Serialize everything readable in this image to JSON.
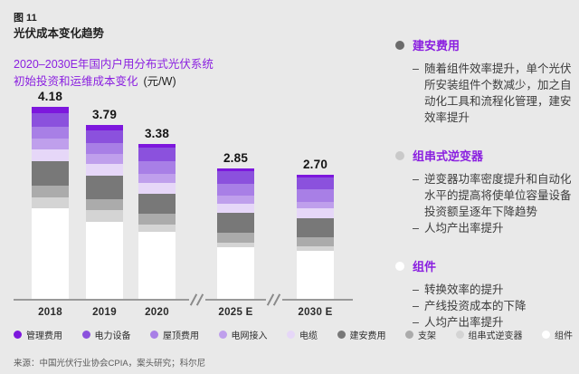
{
  "header": {
    "figure_label": "图 11",
    "title": "光伏成本变化趋势",
    "subtitle_line1": "2020–2030E年国内户用分布式光伏系统",
    "subtitle_line2": "初始投资和运维成本变化",
    "unit": "(元/W)"
  },
  "chart_data": {
    "type": "bar",
    "stacked": true,
    "title": "2020–2030E年国内户用分布式光伏系统初始投资和运维成本变化",
    "ylabel": "元/W",
    "ylim": [
      0,
      4.5
    ],
    "grid": false,
    "legend_position": "bottom",
    "axis_breaks_between": [
      [
        "2020",
        "2025 E"
      ],
      [
        "2025 E",
        "2030 E"
      ]
    ],
    "categories": [
      "2018",
      "2019",
      "2020",
      "2025 E",
      "2030 E"
    ],
    "totals": [
      4.18,
      3.79,
      3.38,
      2.85,
      2.7
    ],
    "series": [
      {
        "name": "管理费用",
        "color": "#7d17dd",
        "values": [
          0.14,
          0.12,
          0.08,
          0.06,
          0.06
        ]
      },
      {
        "name": "电力设备",
        "color": "#8b51dd",
        "values": [
          0.29,
          0.27,
          0.3,
          0.28,
          0.26
        ]
      },
      {
        "name": "屋顶费用",
        "color": "#a87fe6",
        "values": [
          0.25,
          0.24,
          0.26,
          0.25,
          0.26
        ]
      },
      {
        "name": "电网接入",
        "color": "#bf9fec",
        "values": [
          0.24,
          0.22,
          0.2,
          0.17,
          0.14
        ]
      },
      {
        "name": "电缆",
        "color": "#e6d7f8",
        "values": [
          0.26,
          0.25,
          0.25,
          0.21,
          0.22
        ]
      },
      {
        "name": "建安费用",
        "color": "#787878",
        "values": [
          0.53,
          0.51,
          0.43,
          0.43,
          0.41
        ]
      },
      {
        "name": "支架",
        "color": "#ababab",
        "values": [
          0.25,
          0.24,
          0.22,
          0.21,
          0.2
        ]
      },
      {
        "name": "组串式逆变器",
        "color": "#d4d4d4",
        "values": [
          0.24,
          0.25,
          0.16,
          0.1,
          0.1
        ]
      },
      {
        "name": "组件",
        "color": "#ffffff",
        "values": [
          1.98,
          1.69,
          1.48,
          1.14,
          1.05
        ]
      }
    ]
  },
  "panel": {
    "items": [
      {
        "bullet_color": "#6b6b6b",
        "title": "建安费用",
        "points": [
          "随着组件效率提升，单个光伏所安装组件个数减少，加之自动化工具和流程化管理，建安效率提升"
        ]
      },
      {
        "bullet_color": "#c9c9c9",
        "title": "组串式逆变器",
        "points": [
          "逆变器功率密度提升和自动化水平的提高将使单位容量设备投资额呈逐年下降趋势",
          "人均产出率提升"
        ]
      },
      {
        "bullet_color": "#ffffff",
        "title": "组件",
        "points": [
          "转换效率的提升",
          "产线投资成本的下降",
          "人均产出率提升"
        ]
      }
    ]
  },
  "source": "来源：中国光伏行业协会CPIA，案头研究；科尔尼",
  "colors": {
    "accent_purple": "#8a1fe0",
    "background": "#e9e9e9",
    "axis": "#9a9a9a"
  }
}
